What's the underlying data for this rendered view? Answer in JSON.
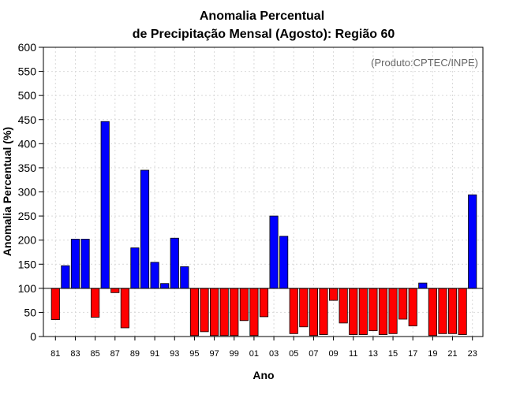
{
  "chart_data": {
    "type": "bar",
    "title_line1": "Anomalia Percentual",
    "title_line2": "de Precipitação Mensal (Agosto): Região 60",
    "xlabel": "Ano",
    "ylabel": "Anomalia Percentual (%)",
    "credit": "(Produto:CPTEC/INPE)",
    "baseline": 100,
    "ylim": [
      0,
      600
    ],
    "yticks": [
      0,
      50,
      100,
      150,
      200,
      250,
      300,
      350,
      400,
      450,
      500,
      550,
      600
    ],
    "grid": true,
    "years": [
      "81",
      "82",
      "83",
      "84",
      "85",
      "86",
      "87",
      "88",
      "89",
      "90",
      "91",
      "92",
      "93",
      "94",
      "95",
      "96",
      "97",
      "98",
      "99",
      "00",
      "01",
      "02",
      "03",
      "04",
      "05",
      "06",
      "07",
      "08",
      "09",
      "10",
      "11",
      "12",
      "13",
      "14",
      "15",
      "16",
      "17",
      "18",
      "19",
      "20",
      "21",
      "22",
      "23"
    ],
    "xtick_labels": [
      "81",
      "83",
      "85",
      "87",
      "89",
      "91",
      "93",
      "95",
      "97",
      "99",
      "01",
      "03",
      "05",
      "07",
      "09",
      "11",
      "13",
      "15",
      "17",
      "19",
      "21",
      "23"
    ],
    "values": [
      35,
      147,
      202,
      202,
      40,
      446,
      91,
      18,
      184,
      345,
      154,
      110,
      204,
      145,
      2,
      10,
      2,
      2,
      2,
      33,
      2,
      41,
      250,
      208,
      6,
      20,
      2,
      4,
      75,
      28,
      4,
      4,
      12,
      4,
      6,
      36,
      22,
      111,
      2,
      6,
      6,
      4,
      294
    ],
    "colors": {
      "above": "#0000ff",
      "below": "#ff0000",
      "edge": "#000000",
      "grid": "#d9d9d9",
      "credit": "#666666"
    }
  }
}
